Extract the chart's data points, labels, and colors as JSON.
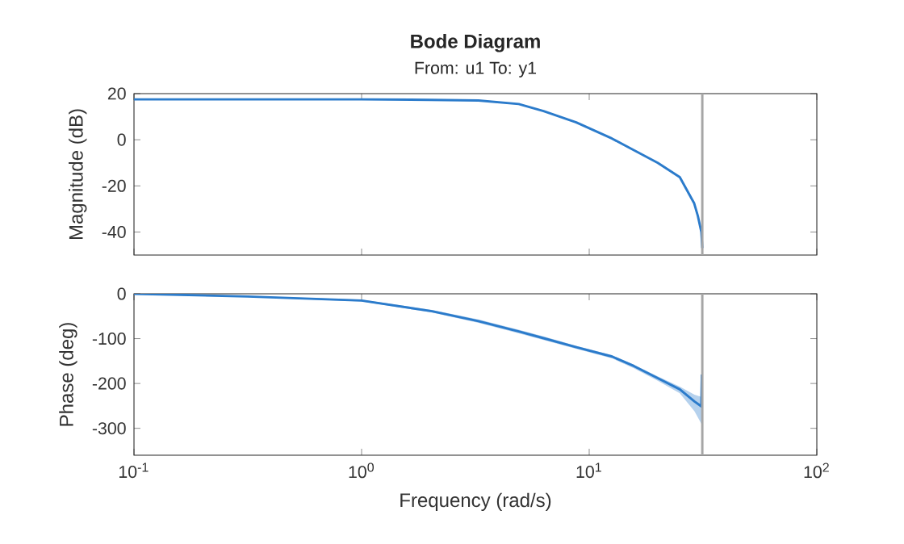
{
  "chart_data": [
    {
      "type": "line",
      "title": "Bode Diagram",
      "subtitle": "From: u1  To: y1",
      "ylabel": "Magnitude (dB)",
      "log": "x",
      "tick_labels": "y",
      "xlim": [
        0.1,
        100
      ],
      "xticks": [
        {
          "value": 0.1,
          "label": null
        },
        {
          "value": 1,
          "label": null
        },
        {
          "value": 10,
          "label": null
        },
        {
          "value": 100,
          "label": null
        }
      ],
      "ylim": [
        -50,
        20
      ],
      "yticks": [
        -40,
        -20,
        0,
        20
      ],
      "ref_lines": [
        {
          "axis": "x",
          "value": 31.4,
          "color": "#a6a6a6"
        }
      ],
      "series": [
        {
          "color": "#2b7bcb",
          "x": [
            0.1,
            1,
            2,
            3.26,
            4.9,
            6.3,
            8.77,
            12.6,
            15.7,
            20,
            25,
            28.9,
            30,
            31.1,
            31.4
          ],
          "values": [
            17.5,
            17.5,
            17.3,
            17,
            15.5,
            12.4,
            7.5,
            0.5,
            -4.5,
            -10,
            -16.2,
            -27.5,
            -33,
            -40,
            -47
          ]
        }
      ]
    },
    {
      "type": "line",
      "xlabel": "Frequency (rad/s)",
      "ylabel": "Phase (deg)",
      "log": "x",
      "xlim": [
        0.1,
        100
      ],
      "xticks": [
        {
          "value": 0.1,
          "label": "10$^{-1}$"
        },
        {
          "value": 1,
          "label": "10$^{0}$"
        },
        {
          "value": 10,
          "label": "10$^{1}$"
        },
        {
          "value": 100,
          "label": "10$^{2}$"
        }
      ],
      "ylim": [
        -360,
        0
      ],
      "yticks": [
        -300,
        -200,
        -100,
        0
      ],
      "ref_lines": [
        {
          "axis": "x",
          "value": 31.4,
          "color": "#a6a6a6"
        }
      ],
      "series": [
        {
          "color": "#2b7bcb",
          "x": [
            0.1,
            0.316,
            1,
            2.04,
            3.26,
            4.9,
            6.3,
            8.77,
            12.6,
            15.7,
            20,
            25,
            29,
            31.1,
            31.25
          ],
          "values": [
            0,
            -6,
            -15,
            -39,
            -61,
            -84,
            -99,
            -119,
            -140,
            -161,
            -188,
            -213,
            -240,
            -251,
            -180
          ],
          "upper": [
            0,
            -5,
            -13,
            -36,
            -57,
            -80,
            -95,
            -116,
            -137,
            -158,
            -184,
            -207,
            -225,
            -230,
            -100
          ],
          "lower": [
            0,
            -7,
            -17,
            -42,
            -65,
            -88,
            -103,
            -123,
            -144,
            -166,
            -194,
            -222,
            -262,
            -290,
            -360
          ]
        }
      ]
    }
  ]
}
